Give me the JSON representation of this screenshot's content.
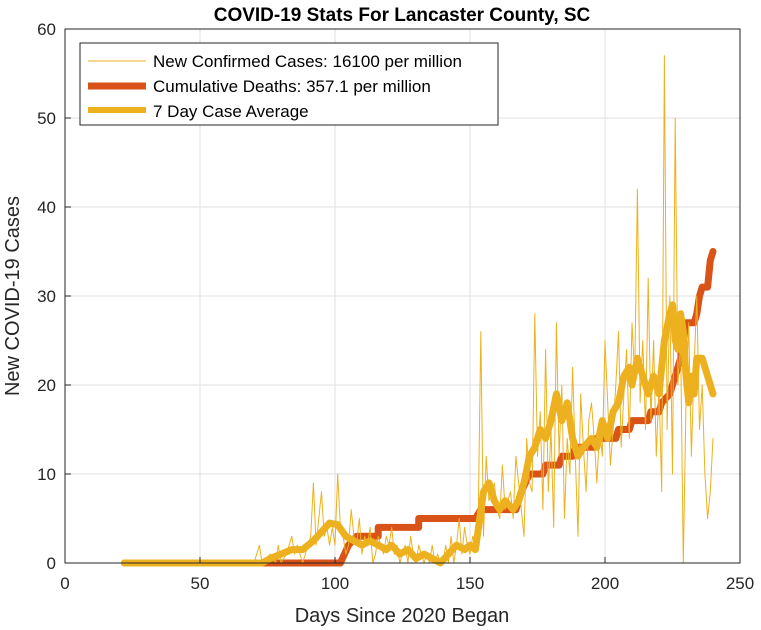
{
  "chart_data": {
    "type": "line",
    "title": "COVID-19 Stats For Lancaster County, SC",
    "xlabel": "Days Since 2020 Began",
    "ylabel": "New COVID-19 Cases",
    "xlim": [
      0,
      250
    ],
    "ylim": [
      0,
      60
    ],
    "xticks": [
      0,
      50,
      100,
      150,
      200,
      250
    ],
    "yticks": [
      0,
      10,
      20,
      30,
      40,
      50,
      60
    ],
    "grid": true,
    "legend_position": "top-left",
    "series": [
      {
        "name": "New Confirmed Cases: 16100 per million",
        "color": "#EDB120",
        "style": "thin",
        "points": [
          [
            22,
            0
          ],
          [
            70,
            0
          ],
          [
            72,
            2
          ],
          [
            73,
            0
          ],
          [
            76,
            1
          ],
          [
            78,
            0
          ],
          [
            79,
            2
          ],
          [
            80,
            0
          ],
          [
            82,
            1
          ],
          [
            84,
            3
          ],
          [
            85,
            1
          ],
          [
            86,
            2
          ],
          [
            88,
            0
          ],
          [
            89,
            1
          ],
          [
            91,
            3
          ],
          [
            92,
            9
          ],
          [
            93,
            2
          ],
          [
            94,
            5
          ],
          [
            95,
            8
          ],
          [
            96,
            3
          ],
          [
            97,
            4
          ],
          [
            98,
            2
          ],
          [
            99,
            4
          ],
          [
            100,
            2
          ],
          [
            101,
            10
          ],
          [
            102,
            4
          ],
          [
            103,
            3
          ],
          [
            104,
            1
          ],
          [
            105,
            2
          ],
          [
            106,
            6
          ],
          [
            107,
            3
          ],
          [
            108,
            2
          ],
          [
            109,
            5
          ],
          [
            110,
            1
          ],
          [
            111,
            3
          ],
          [
            112,
            2
          ],
          [
            113,
            4
          ],
          [
            114,
            0
          ],
          [
            115,
            1
          ],
          [
            116,
            3
          ],
          [
            117,
            2
          ],
          [
            118,
            1
          ],
          [
            119,
            3
          ],
          [
            120,
            2
          ],
          [
            121,
            4
          ],
          [
            122,
            1
          ],
          [
            123,
            2
          ],
          [
            124,
            0
          ],
          [
            125,
            1
          ],
          [
            126,
            2
          ],
          [
            127,
            0
          ],
          [
            128,
            3
          ],
          [
            129,
            1
          ],
          [
            130,
            0
          ],
          [
            131,
            2
          ],
          [
            132,
            1
          ],
          [
            133,
            0
          ],
          [
            134,
            1
          ],
          [
            135,
            0
          ],
          [
            136,
            2
          ],
          [
            137,
            0
          ],
          [
            138,
            1
          ],
          [
            139,
            0
          ],
          [
            140,
            0
          ],
          [
            141,
            2
          ],
          [
            142,
            0
          ],
          [
            143,
            3
          ],
          [
            144,
            0
          ],
          [
            145,
            2
          ],
          [
            146,
            5
          ],
          [
            147,
            1
          ],
          [
            148,
            4
          ],
          [
            149,
            2
          ],
          [
            150,
            1
          ],
          [
            151,
            3
          ],
          [
            152,
            2
          ],
          [
            153,
            4
          ],
          [
            154,
            26
          ],
          [
            155,
            3
          ],
          [
            156,
            12
          ],
          [
            157,
            7
          ],
          [
            158,
            8
          ],
          [
            159,
            9
          ],
          [
            160,
            6
          ],
          [
            161,
            5
          ],
          [
            162,
            11
          ],
          [
            163,
            6
          ],
          [
            164,
            7
          ],
          [
            165,
            8
          ],
          [
            166,
            5
          ],
          [
            167,
            12
          ],
          [
            168,
            9
          ],
          [
            169,
            6
          ],
          [
            170,
            3
          ],
          [
            171,
            14
          ],
          [
            172,
            9
          ],
          [
            173,
            8
          ],
          [
            174,
            28
          ],
          [
            175,
            12
          ],
          [
            176,
            17
          ],
          [
            177,
            6
          ],
          [
            178,
            24
          ],
          [
            179,
            8
          ],
          [
            180,
            15
          ],
          [
            181,
            4
          ],
          [
            182,
            27
          ],
          [
            183,
            12
          ],
          [
            184,
            20
          ],
          [
            185,
            5
          ],
          [
            186,
            14
          ],
          [
            187,
            10
          ],
          [
            188,
            22
          ],
          [
            189,
            12
          ],
          [
            190,
            3
          ],
          [
            191,
            19
          ],
          [
            192,
            13
          ],
          [
            193,
            8
          ],
          [
            194,
            16
          ],
          [
            195,
            18
          ],
          [
            196,
            14
          ],
          [
            197,
            9
          ],
          [
            198,
            15
          ],
          [
            199,
            12
          ],
          [
            200,
            25
          ],
          [
            201,
            18
          ],
          [
            202,
            11
          ],
          [
            203,
            15
          ],
          [
            204,
            20
          ],
          [
            205,
            26
          ],
          [
            206,
            13
          ],
          [
            207,
            19
          ],
          [
            208,
            24
          ],
          [
            209,
            14
          ],
          [
            210,
            27
          ],
          [
            211,
            21
          ],
          [
            212,
            42
          ],
          [
            213,
            18
          ],
          [
            214,
            25
          ],
          [
            215,
            15
          ],
          [
            216,
            32
          ],
          [
            217,
            16
          ],
          [
            218,
            25
          ],
          [
            219,
            12
          ],
          [
            220,
            20
          ],
          [
            221,
            8
          ],
          [
            222,
            57
          ],
          [
            223,
            15
          ],
          [
            224,
            30
          ],
          [
            225,
            10
          ],
          [
            226,
            50
          ],
          [
            227,
            20
          ],
          [
            228,
            25
          ],
          [
            229,
            0
          ],
          [
            230,
            18
          ],
          [
            231,
            27
          ],
          [
            232,
            12
          ],
          [
            233,
            22
          ],
          [
            234,
            30
          ],
          [
            235,
            15
          ],
          [
            236,
            20
          ],
          [
            237,
            10
          ],
          [
            238,
            5
          ],
          [
            239,
            8
          ],
          [
            240,
            14
          ]
        ]
      },
      {
        "name": "Cumulative Deaths: 357.1 per million",
        "color": "#D95319",
        "style": "thick",
        "points": [
          [
            22,
            0
          ],
          [
            102,
            0
          ],
          [
            105,
            2
          ],
          [
            108,
            3
          ],
          [
            116,
            3
          ],
          [
            116,
            4
          ],
          [
            131,
            4
          ],
          [
            131,
            5
          ],
          [
            152,
            5
          ],
          [
            154,
            6
          ],
          [
            167,
            6
          ],
          [
            169,
            8
          ],
          [
            172,
            10
          ],
          [
            177,
            10
          ],
          [
            178,
            11
          ],
          [
            183,
            11
          ],
          [
            184,
            12
          ],
          [
            188,
            12
          ],
          [
            189,
            13
          ],
          [
            196,
            13
          ],
          [
            197,
            14
          ],
          [
            204,
            14
          ],
          [
            205,
            15
          ],
          [
            209,
            15
          ],
          [
            210,
            16
          ],
          [
            216,
            16
          ],
          [
            217,
            17
          ],
          [
            220,
            17
          ],
          [
            221,
            18
          ],
          [
            224,
            19
          ],
          [
            226,
            21
          ],
          [
            227,
            22
          ],
          [
            228,
            23
          ],
          [
            229,
            25
          ],
          [
            230,
            27
          ],
          [
            233,
            27
          ],
          [
            234,
            28
          ],
          [
            235,
            30
          ],
          [
            236,
            31
          ],
          [
            238,
            31
          ],
          [
            239,
            34
          ],
          [
            240,
            35
          ]
        ]
      },
      {
        "name": "7 Day Case Average",
        "color": "#EDB120",
        "style": "medium",
        "points": [
          [
            22,
            0
          ],
          [
            73,
            0
          ],
          [
            76,
            0.5
          ],
          [
            80,
            1
          ],
          [
            84,
            1.5
          ],
          [
            88,
            1.5
          ],
          [
            92,
            2.5
          ],
          [
            95,
            3.5
          ],
          [
            98,
            4.5
          ],
          [
            101,
            4.3
          ],
          [
            104,
            3
          ],
          [
            107,
            2.5
          ],
          [
            110,
            2
          ],
          [
            113,
            2.5
          ],
          [
            116,
            2
          ],
          [
            119,
            1.5
          ],
          [
            121,
            2
          ],
          [
            124,
            1
          ],
          [
            127,
            1.5
          ],
          [
            130,
            0.5
          ],
          [
            133,
            1
          ],
          [
            136,
            0.5
          ],
          [
            139,
            0
          ],
          [
            142,
            1
          ],
          [
            145,
            2
          ],
          [
            148,
            1.5
          ],
          [
            150,
            2
          ],
          [
            152,
            1.5
          ],
          [
            155,
            8
          ],
          [
            157,
            9
          ],
          [
            159,
            7
          ],
          [
            161,
            6
          ],
          [
            163,
            7
          ],
          [
            166,
            6
          ],
          [
            168,
            7
          ],
          [
            170,
            9
          ],
          [
            172,
            12
          ],
          [
            174,
            13
          ],
          [
            176,
            15
          ],
          [
            178,
            14
          ],
          [
            180,
            16
          ],
          [
            182,
            19
          ],
          [
            184,
            16
          ],
          [
            186,
            18
          ],
          [
            188,
            14
          ],
          [
            190,
            12
          ],
          [
            192,
            13
          ],
          [
            195,
            14
          ],
          [
            197,
            13
          ],
          [
            199,
            16
          ],
          [
            201,
            14
          ],
          [
            203,
            17
          ],
          [
            205,
            18
          ],
          [
            207,
            21
          ],
          [
            209,
            22
          ],
          [
            210,
            20
          ],
          [
            212,
            23
          ],
          [
            214,
            21
          ],
          [
            216,
            19
          ],
          [
            218,
            21
          ],
          [
            220,
            19
          ],
          [
            222,
            25
          ],
          [
            224,
            28
          ],
          [
            225,
            29
          ],
          [
            226,
            25
          ],
          [
            227,
            24
          ],
          [
            228,
            28
          ],
          [
            229,
            26
          ],
          [
            230,
            21
          ],
          [
            231,
            18
          ],
          [
            232,
            21
          ],
          [
            233,
            19
          ],
          [
            234,
            23
          ],
          [
            236,
            23
          ],
          [
            238,
            21
          ],
          [
            240,
            19
          ]
        ]
      }
    ]
  }
}
